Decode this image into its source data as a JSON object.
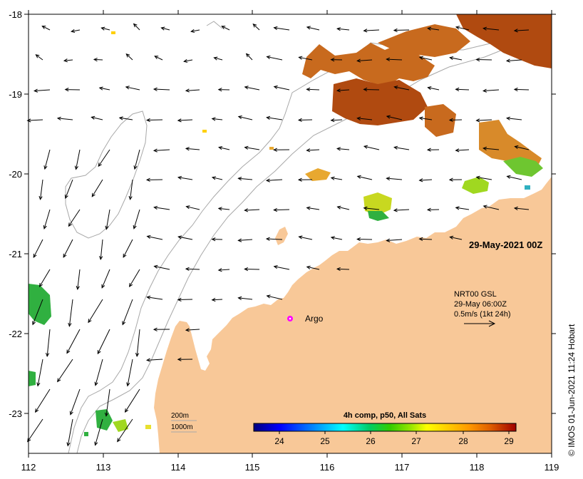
{
  "map": {
    "date_label": "29-May-2021 00Z",
    "lat_ticks": [
      "-18",
      "-19",
      "-20",
      "-21",
      "-22",
      "-23"
    ],
    "lon_ticks": [
      "112",
      "113",
      "114",
      "115",
      "116",
      "117",
      "118",
      "119"
    ],
    "argo_label": "Argo",
    "current_legend": {
      "line1": "NRT00 GSL",
      "line2": "29-May 06:00Z",
      "line3": "0.5m/s (1kt 24h)"
    },
    "depth_legend": {
      "line1": "200m",
      "line2": "1000m"
    },
    "colorbar": {
      "title": "4h comp, p50, All Sats",
      "ticks": [
        "24",
        "25",
        "26",
        "27",
        "28",
        "29"
      ],
      "colors": [
        "#00007f",
        "#0000ff",
        "#007fff",
        "#00ffff",
        "#00cc66",
        "#33cc00",
        "#99e600",
        "#ffff00",
        "#ffcc00",
        "#ff9900",
        "#e06000",
        "#c03000",
        "#a00000"
      ]
    },
    "credit": "© IMOS 01-Jun-2021 11:24 Hobart",
    "colors": {
      "land": "#f8c898",
      "contour": "#a8a8a8",
      "warm": "#d07020",
      "hot": "#b04a10",
      "argo": "#ff00ff"
    }
  }
}
